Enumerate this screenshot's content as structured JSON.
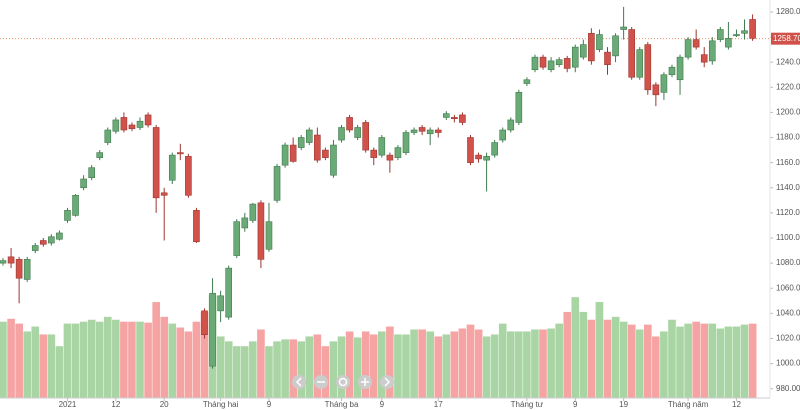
{
  "chart_data": {
    "type": "candlestick",
    "categories": [
      null,
      null,
      null,
      null,
      null,
      null,
      null,
      null,
      "2021",
      null,
      null,
      null,
      null,
      null,
      "12",
      null,
      null,
      null,
      null,
      null,
      "20",
      null,
      null,
      null,
      null,
      null,
      null,
      "Tháng hai",
      null,
      null,
      null,
      null,
      null,
      "9",
      null,
      null,
      null,
      null,
      null,
      null,
      null,
      null,
      "Tháng ba",
      null,
      null,
      null,
      null,
      "9",
      null,
      null,
      null,
      null,
      null,
      null,
      "17",
      null,
      null,
      null,
      null,
      null,
      null,
      null,
      null,
      null,
      null,
      "Tháng tư",
      null,
      null,
      null,
      null,
      null,
      "9",
      null,
      null,
      null,
      null,
      null,
      "19",
      null,
      null,
      null,
      null,
      null,
      null,
      null,
      "Tháng năm",
      null,
      null,
      null,
      null,
      null,
      "12",
      null,
      null
    ],
    "open": [
      1080,
      1085,
      1083,
      1067,
      1090,
      1098,
      1096,
      1099,
      1114,
      1118,
      1140,
      1148,
      1164,
      1176,
      1185,
      1196,
      1190,
      1188,
      1198,
      1188,
      1136,
      1146,
      1168,
      1165,
      1122,
      1042,
      998,
      1042,
      1037,
      1086,
      1108,
      1114,
      1128,
      1091,
      1130,
      1158,
      1174,
      1172,
      1176,
      1182,
      1170,
      1150,
      1178,
      1196,
      1180,
      1192,
      1170,
      1166,
      1166,
      1164,
      1168,
      1184,
      1188,
      1183,
      1186,
      1196,
      1196,
      1198,
      1180,
      1166,
      1162,
      1166,
      1178,
      1186,
      1192,
      1223,
      1234,
      1244,
      1234,
      1238,
      1243,
      1236,
      1244,
      1263,
      1250,
      1248,
      1245,
      1266,
      1266,
      1228,
      1254,
      1222,
      1216,
      1230,
      1226,
      1244,
      1258,
      1246,
      1241,
      1258,
      1252,
      1261,
      1263,
      1274
    ],
    "high": [
      1084,
      1092,
      1085,
      1085,
      1096,
      1100,
      1103,
      1106,
      1124,
      1135,
      1150,
      1158,
      1170,
      1188,
      1196,
      1200,
      1192,
      1196,
      1200,
      1190,
      1140,
      1168,
      1175,
      1167,
      1124,
      1044,
      1068,
      1058,
      1078,
      1115,
      1120,
      1128,
      1130,
      1128,
      1159,
      1176,
      1180,
      1182,
      1188,
      1188,
      1172,
      1178,
      1190,
      1198,
      1190,
      1194,
      1172,
      1182,
      1168,
      1174,
      1186,
      1188,
      1190,
      1188,
      1188,
      1201,
      1198,
      1200,
      1182,
      1168,
      1168,
      1178,
      1188,
      1196,
      1218,
      1228,
      1246,
      1246,
      1244,
      1244,
      1245,
      1254,
      1258,
      1267,
      1266,
      1252,
      1263,
      1284,
      1268,
      1252,
      1256,
      1224,
      1232,
      1238,
      1246,
      1260,
      1266,
      1252,
      1260,
      1268,
      1272,
      1266,
      1274,
      1278
    ],
    "low": [
      1078,
      1076,
      1048,
      1065,
      1088,
      1093,
      1094,
      1098,
      1112,
      1117,
      1138,
      1146,
      1162,
      1174,
      1183,
      1184,
      1185,
      1186,
      1188,
      1120,
      1098,
      1143,
      1162,
      1132,
      1096,
      1020,
      996,
      1033,
      1035,
      1084,
      1105,
      1112,
      1076,
      1089,
      1128,
      1156,
      1160,
      1170,
      1174,
      1160,
      1162,
      1148,
      1176,
      1184,
      1178,
      1168,
      1158,
      1164,
      1152,
      1162,
      1166,
      1182,
      1182,
      1174,
      1180,
      1194,
      1192,
      1190,
      1158,
      1160,
      1137,
      1164,
      1176,
      1184,
      1190,
      1221,
      1232,
      1234,
      1232,
      1236,
      1232,
      1232,
      1242,
      1238,
      1248,
      1230,
      1240,
      1258,
      1226,
      1226,
      1214,
      1205,
      1210,
      1228,
      1214,
      1242,
      1250,
      1236,
      1238,
      1256,
      1250,
      1260,
      1258,
      1257
    ],
    "close": [
      1082,
      1080,
      1068,
      1083,
      1094,
      1095,
      1101,
      1104,
      1122,
      1134,
      1147,
      1156,
      1168,
      1186,
      1194,
      1186,
      1187,
      1193,
      1190,
      1132,
      1134,
      1166,
      1167,
      1134,
      1097,
      1023,
      1056,
      1054,
      1076,
      1113,
      1116,
      1127,
      1083,
      1113,
      1157,
      1174,
      1161,
      1180,
      1186,
      1162,
      1164,
      1174,
      1188,
      1186,
      1188,
      1170,
      1164,
      1180,
      1162,
      1172,
      1184,
      1186,
      1185,
      1186,
      1184,
      1199,
      1195,
      1192,
      1160,
      1163,
      1165,
      1176,
      1186,
      1194,
      1216,
      1226,
      1244,
      1236,
      1241,
      1242,
      1235,
      1252,
      1254,
      1241,
      1262,
      1238,
      1261,
      1268,
      1228,
      1250,
      1218,
      1214,
      1230,
      1236,
      1244,
      1258,
      1252,
      1240,
      1257,
      1266,
      1259,
      1262,
      1265,
      1259
    ],
    "volume": [
      78,
      81,
      76,
      68,
      73,
      65,
      65,
      53,
      76,
      76,
      78,
      80,
      78,
      83,
      80,
      78,
      78,
      78,
      77,
      98,
      83,
      76,
      72,
      68,
      78,
      88,
      105,
      63,
      58,
      53,
      53,
      58,
      70,
      53,
      58,
      60,
      60,
      58,
      63,
      65,
      53,
      58,
      63,
      68,
      62,
      68,
      65,
      68,
      73,
      65,
      65,
      70,
      70,
      68,
      63,
      65,
      68,
      71,
      75,
      70,
      63,
      65,
      76,
      68,
      68,
      68,
      70,
      70,
      71,
      76,
      88,
      103,
      88,
      80,
      98,
      80,
      83,
      78,
      75,
      70,
      75,
      63,
      68,
      80,
      73,
      76,
      78,
      76,
      76,
      71,
      73,
      73,
      75,
      76
    ],
    "ylim": [
      975,
      1289.5
    ],
    "yticks": [
      {
        "value": 980,
        "label": "980.00"
      },
      {
        "value": 1000,
        "label": "1000.00"
      },
      {
        "value": 1020,
        "label": "1020.00"
      },
      {
        "value": 1040,
        "label": "1040.00"
      },
      {
        "value": 1060,
        "label": "1060.00"
      },
      {
        "value": 1080,
        "label": "1080.00"
      },
      {
        "value": 1100,
        "label": "1100.00"
      },
      {
        "value": 1120,
        "label": "1120.00"
      },
      {
        "value": 1140,
        "label": "1140.00"
      },
      {
        "value": 1160,
        "label": "1160.00"
      },
      {
        "value": 1180,
        "label": "1180.00"
      },
      {
        "value": 1200,
        "label": "1200.00"
      },
      {
        "value": 1220,
        "label": "1220.00"
      },
      {
        "value": 1240,
        "label": "1240.00"
      },
      {
        "value": 1260,
        "label": "1260.00"
      },
      {
        "value": 1280,
        "label": "1280.00"
      }
    ],
    "last_price": {
      "value": 1258.7,
      "label": "1258.70"
    },
    "up_color": "#6aaa77",
    "down_color": "#d0524a",
    "volume_up_color": "#a9d4a3",
    "volume_down_color": "#f5a3a3",
    "grid": false
  }
}
